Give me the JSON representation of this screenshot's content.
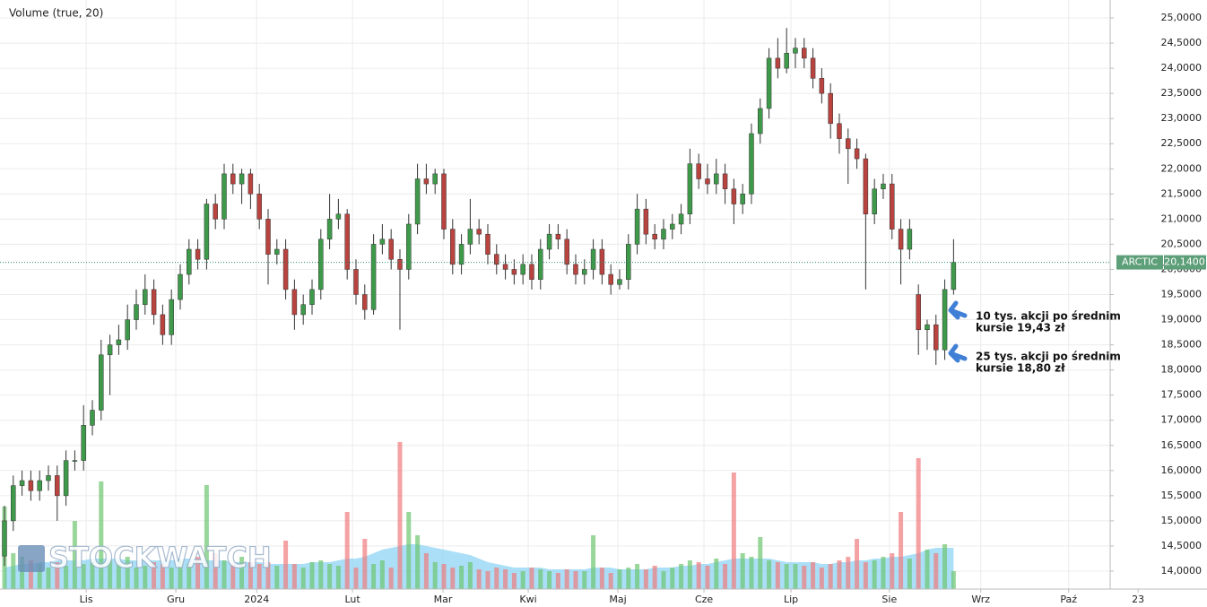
{
  "chart_data": {
    "type": "candlestick",
    "volume_label": "Volume (true, 20)",
    "symbol": "ARCTIC",
    "last_price": {
      "value": 20.14,
      "label": "20,1400"
    },
    "watermark": "STOCKWATCH",
    "colors": {
      "up": "#3e9a4a",
      "down": "#b8433f",
      "volume_up": "#6cc46f",
      "volume_down": "#f07a7e",
      "volume_ma": "#8fd4f4",
      "last_line": "#2f8f6f"
    },
    "grid": true,
    "open": [
      14.3,
      15.0,
      15.7,
      15.8,
      15.6,
      15.8,
      15.9,
      15.5,
      16.2,
      16.2,
      16.9,
      17.2,
      18.3,
      18.5,
      18.6,
      19.0,
      19.3,
      19.6,
      19.1,
      18.7,
      19.4,
      19.9,
      20.4,
      20.2,
      21.3,
      21.0,
      21.9,
      21.7,
      21.9,
      21.5,
      21.0,
      20.3,
      20.4,
      19.6,
      19.1,
      19.3,
      19.6,
      20.6,
      21.0,
      21.1,
      20.0,
      19.5,
      19.2,
      20.5,
      20.6,
      20.2,
      20.0,
      20.9,
      21.8,
      21.7,
      21.9,
      20.8,
      20.1,
      20.5,
      20.8,
      20.7,
      20.3,
      20.1,
      20.0,
      19.9,
      20.1,
      19.8,
      20.4,
      20.7,
      20.6,
      20.1,
      19.9,
      20.0,
      20.4,
      19.9,
      19.7,
      19.8,
      20.5,
      21.2,
      20.7,
      20.6,
      20.8,
      20.9,
      21.1,
      22.1,
      21.8,
      21.7,
      21.9,
      21.6,
      21.3,
      21.5,
      22.7,
      23.2,
      24.2,
      24.0,
      24.3,
      24.4,
      24.2,
      23.8,
      23.5,
      22.9,
      22.6,
      22.4,
      22.2,
      21.1,
      21.6,
      21.7,
      20.8,
      20.4,
      19.5,
      18.8,
      18.9,
      18.4,
      19.6
    ],
    "high": [
      15.3,
      15.9,
      16.0,
      16.0,
      16.0,
      16.1,
      16.1,
      16.4,
      16.4,
      17.3,
      17.4,
      18.6,
      18.7,
      18.9,
      19.3,
      19.6,
      19.9,
      19.8,
      19.3,
      19.6,
      20.1,
      20.6,
      20.6,
      21.4,
      21.5,
      22.1,
      22.1,
      22.0,
      22.0,
      21.7,
      21.2,
      20.6,
      20.6,
      19.8,
      19.5,
      19.8,
      20.8,
      21.5,
      21.4,
      21.2,
      20.2,
      19.7,
      20.7,
      20.9,
      20.8,
      20.4,
      21.1,
      22.1,
      22.1,
      22.0,
      22.0,
      21.0,
      20.7,
      21.4,
      21.0,
      20.9,
      20.5,
      20.3,
      20.2,
      20.3,
      20.3,
      20.6,
      20.9,
      20.9,
      20.8,
      20.3,
      20.2,
      20.6,
      20.6,
      20.1,
      20.0,
      20.7,
      21.5,
      21.4,
      20.9,
      21.0,
      21.1,
      21.3,
      22.4,
      22.3,
      22.1,
      22.2,
      22.1,
      21.8,
      21.7,
      22.9,
      23.4,
      24.4,
      24.6,
      24.8,
      24.6,
      24.6,
      24.4,
      24.0,
      23.7,
      23.1,
      22.8,
      22.6,
      22.3,
      21.8,
      21.9,
      21.9,
      21.0,
      21.0,
      19.7,
      19.0,
      19.1,
      19.8,
      20.6
    ],
    "low": [
      14.1,
      14.8,
      15.5,
      15.4,
      15.4,
      15.6,
      15.0,
      15.3,
      16.0,
      16.0,
      16.7,
      17.0,
      17.5,
      18.3,
      18.4,
      18.8,
      19.1,
      18.9,
      18.5,
      18.5,
      19.2,
      19.7,
      20.0,
      20.0,
      20.8,
      20.8,
      21.5,
      21.3,
      21.2,
      20.8,
      19.7,
      20.1,
      19.4,
      18.8,
      18.9,
      19.1,
      19.4,
      20.4,
      20.8,
      19.8,
      19.3,
      19.0,
      19.1,
      20.3,
      20.0,
      18.8,
      19.8,
      20.7,
      21.5,
      21.5,
      20.6,
      19.9,
      19.9,
      20.3,
      20.5,
      20.1,
      19.9,
      19.8,
      19.7,
      19.7,
      19.6,
      19.6,
      20.2,
      20.4,
      19.9,
      19.7,
      19.7,
      19.8,
      19.7,
      19.5,
      19.6,
      19.6,
      20.3,
      20.5,
      20.4,
      20.4,
      20.6,
      20.7,
      20.9,
      21.6,
      21.5,
      21.5,
      21.3,
      20.9,
      21.1,
      21.3,
      22.5,
      23.0,
      23.8,
      23.9,
      24.0,
      24.0,
      23.6,
      23.3,
      22.6,
      22.3,
      21.7,
      22.0,
      19.6,
      20.9,
      21.4,
      20.6,
      19.7,
      20.2,
      18.3,
      18.4,
      18.1,
      18.2,
      19.5
    ],
    "close": [
      15.0,
      15.7,
      15.8,
      15.6,
      15.8,
      15.9,
      15.5,
      16.2,
      16.2,
      16.9,
      17.2,
      18.3,
      18.5,
      18.6,
      19.0,
      19.3,
      19.6,
      19.1,
      18.7,
      19.4,
      19.9,
      20.4,
      20.2,
      21.3,
      21.0,
      21.9,
      21.7,
      21.9,
      21.5,
      21.0,
      20.3,
      20.4,
      19.6,
      19.1,
      19.3,
      19.6,
      20.6,
      21.0,
      21.1,
      20.0,
      19.5,
      19.2,
      20.5,
      20.6,
      20.2,
      20.0,
      20.9,
      21.8,
      21.7,
      21.9,
      20.8,
      20.1,
      20.5,
      20.8,
      20.7,
      20.3,
      20.1,
      20.0,
      19.9,
      20.1,
      19.8,
      20.4,
      20.7,
      20.6,
      20.1,
      19.9,
      20.0,
      20.4,
      19.9,
      19.7,
      19.8,
      20.5,
      21.2,
      20.7,
      20.6,
      20.8,
      20.9,
      21.1,
      22.1,
      21.8,
      21.7,
      21.9,
      21.6,
      21.3,
      21.5,
      22.7,
      23.2,
      24.2,
      24.0,
      24.3,
      24.4,
      24.2,
      23.8,
      23.5,
      22.9,
      22.6,
      22.4,
      22.2,
      21.1,
      21.6,
      21.7,
      20.8,
      20.4,
      20.8,
      18.8,
      18.9,
      18.4,
      19.6,
      20.14
    ],
    "volume": [
      46,
      20,
      18,
      16,
      14,
      12,
      15,
      13,
      38,
      14,
      15,
      60,
      16,
      14,
      18,
      12,
      13,
      15,
      14,
      12,
      16,
      14,
      18,
      58,
      20,
      16,
      14,
      18,
      15,
      14,
      15,
      13,
      27,
      14,
      12,
      15,
      16,
      14,
      13,
      43,
      12,
      28,
      14,
      16,
      12,
      82,
      43,
      30,
      20,
      15,
      14,
      12,
      13,
      15,
      11,
      10,
      12,
      11,
      9,
      10,
      12,
      11,
      10,
      9,
      11,
      10,
      10,
      30,
      12,
      9,
      11,
      12,
      14,
      11,
      13,
      10,
      12,
      14,
      16,
      15,
      13,
      17,
      14,
      65,
      20,
      18,
      29,
      16,
      15,
      14,
      14,
      13,
      15,
      12,
      14,
      16,
      18,
      28,
      15,
      16,
      18,
      20,
      43,
      17,
      73,
      22,
      20,
      25,
      10
    ],
    "volume_ma": [
      12,
      13,
      14,
      14,
      15,
      15,
      16,
      16,
      16,
      16,
      17,
      17,
      17,
      17,
      16,
      16,
      16,
      16,
      16,
      16,
      17,
      17,
      17,
      16,
      16,
      16,
      15,
      15,
      15,
      15,
      14,
      14,
      14,
      14,
      14,
      15,
      15,
      15,
      16,
      17,
      17,
      18,
      20,
      22,
      23,
      24,
      25,
      25,
      24,
      23,
      22,
      21,
      20,
      19,
      17,
      15,
      14,
      13,
      12,
      12,
      12,
      12,
      11,
      11,
      11,
      11,
      11,
      12,
      12,
      12,
      11,
      11,
      11,
      11,
      12,
      12,
      12,
      13,
      13,
      14,
      14,
      15,
      16,
      17,
      17,
      17,
      17,
      17,
      16,
      15,
      15,
      15,
      15,
      14,
      14,
      15,
      15,
      16,
      16,
      17,
      17,
      18,
      18,
      19,
      20,
      22,
      23,
      23,
      23
    ],
    "vlim": [
      0,
      100
    ],
    "xlim": [
      -0.51,
      125.82
    ],
    "xticks": [
      {
        "value": 9.3,
        "label": "Lis"
      },
      {
        "value": 19.5,
        "label": "Gru"
      },
      {
        "value": 28.7,
        "label": "2024"
      },
      {
        "value": 39.6,
        "label": "Lut"
      },
      {
        "value": 49.9,
        "label": "Mar"
      },
      {
        "value": 59.6,
        "label": "Kwi"
      },
      {
        "value": 69.8,
        "label": "Maj"
      },
      {
        "value": 79.6,
        "label": "Cze"
      },
      {
        "value": 89.5,
        "label": "Lip"
      },
      {
        "value": 100.7,
        "label": "Sie"
      },
      {
        "value": 111.1,
        "label": "Wrz"
      },
      {
        "value": 121.1,
        "label": "Paź"
      },
      {
        "value": 129.0,
        "label": "23"
      }
    ],
    "ylim": [
      13.643,
      25.357
    ],
    "yticks": [
      {
        "value": 14,
        "label": "14,0000"
      },
      {
        "value": 14.5,
        "label": "14,5000"
      },
      {
        "value": 15,
        "label": "15,0000"
      },
      {
        "value": 15.5,
        "label": "15,5000"
      },
      {
        "value": 16,
        "label": "16,0000"
      },
      {
        "value": 16.5,
        "label": "16,5000"
      },
      {
        "value": 17,
        "label": "17,0000"
      },
      {
        "value": 17.5,
        "label": "17,5000"
      },
      {
        "value": 18,
        "label": "18,0000"
      },
      {
        "value": 18.5,
        "label": "18,5000"
      },
      {
        "value": 19,
        "label": "19,0000"
      },
      {
        "value": 19.5,
        "label": "19,5000"
      },
      {
        "value": 20,
        "label": "20,0000"
      },
      {
        "value": 20.5,
        "label": "20,5000"
      },
      {
        "value": 21,
        "label": "21,0000"
      },
      {
        "value": 21.5,
        "label": "21,5000"
      },
      {
        "value": 22,
        "label": "22,0000"
      },
      {
        "value": 22.5,
        "label": "22,5000"
      },
      {
        "value": 23,
        "label": "23,0000"
      },
      {
        "value": 23.5,
        "label": "23,5000"
      },
      {
        "value": 24,
        "label": "24,0000"
      },
      {
        "value": 24.5,
        "label": "24,5000"
      },
      {
        "value": 25,
        "label": "25,0000"
      }
    ],
    "annotations": [
      {
        "lines": [
          "10 tys. akcji po średnim",
          "kursie 19,43 zł"
        ]
      },
      {
        "lines": [
          "25 tys. akcji po średnim",
          "kursie 18,80 zł"
        ]
      }
    ]
  }
}
